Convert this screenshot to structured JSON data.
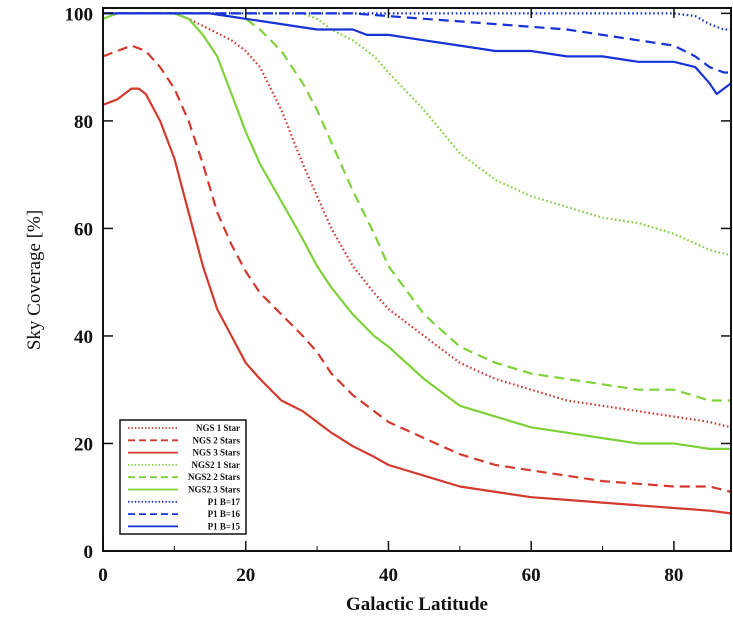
{
  "chart_data": {
    "type": "line",
    "title": "",
    "xlabel": "Galactic Latitude",
    "ylabel": "Sky Coverage [%]",
    "xlim": [
      0,
      88
    ],
    "ylim": [
      0,
      101
    ],
    "xticks": [
      "0",
      "20",
      "40",
      "60",
      "80"
    ],
    "yticks": [
      "0",
      "20",
      "40",
      "60",
      "80",
      "100"
    ],
    "grid": false,
    "legend_position": "bottom-left",
    "series": [
      {
        "name": "NGS 1 Star",
        "color": "#d23a2e",
        "dash": "dotted",
        "x": [
          0,
          5,
          10,
          12,
          15,
          18,
          20,
          22,
          25,
          28,
          30,
          32,
          35,
          38,
          40,
          45,
          50,
          55,
          60,
          65,
          70,
          75,
          80,
          85,
          88
        ],
        "y": [
          100,
          100,
          100,
          99,
          97,
          95,
          93,
          90,
          82,
          72,
          66,
          60,
          53,
          48,
          45,
          40,
          35,
          32,
          30,
          28,
          27,
          26,
          25,
          24,
          23
        ]
      },
      {
        "name": "NGS 2 Stars",
        "color": "#d23a2e",
        "dash": "dashed",
        "x": [
          0,
          2,
          4,
          6,
          8,
          10,
          12,
          14,
          16,
          18,
          20,
          22,
          25,
          28,
          30,
          32,
          35,
          38,
          40,
          45,
          50,
          55,
          60,
          65,
          70,
          75,
          80,
          85,
          88
        ],
        "y": [
          92,
          93,
          94,
          93,
          90,
          86,
          80,
          72,
          63,
          57,
          52,
          48,
          44,
          40,
          37,
          33,
          29,
          26,
          24,
          21,
          18,
          16,
          15,
          14,
          13,
          12.5,
          12,
          12,
          11
        ]
      },
      {
        "name": "NGS 3 Stars",
        "color": "#d23a2e",
        "dash": "solid",
        "x": [
          0,
          2,
          4,
          5,
          6,
          8,
          10,
          12,
          14,
          16,
          18,
          20,
          22,
          25,
          28,
          30,
          32,
          35,
          38,
          40,
          45,
          50,
          55,
          60,
          65,
          70,
          75,
          80,
          85,
          88
        ],
        "y": [
          83,
          84,
          86,
          86,
          85,
          80,
          73,
          63,
          53,
          45,
          40,
          35,
          32,
          28,
          26,
          24,
          22,
          19.5,
          17.5,
          16,
          14,
          12,
          11,
          10,
          9.5,
          9,
          8.5,
          8,
          7.5,
          7
        ]
      },
      {
        "name": "NGS2 1 Star",
        "color": "#7fd13b",
        "dash": "dotted",
        "x": [
          0,
          5,
          10,
          15,
          20,
          25,
          28,
          30,
          32,
          35,
          38,
          40,
          45,
          50,
          55,
          60,
          65,
          70,
          75,
          80,
          85,
          88
        ],
        "y": [
          100,
          100,
          100,
          100,
          100,
          100,
          100,
          99,
          97,
          95,
          92,
          89,
          82,
          74,
          69,
          66,
          64,
          62,
          61,
          59,
          56,
          55
        ]
      },
      {
        "name": "NGS2 2 Stars",
        "color": "#7fd13b",
        "dash": "dashed",
        "x": [
          0,
          5,
          10,
          15,
          20,
          22,
          25,
          28,
          30,
          32,
          35,
          38,
          40,
          45,
          50,
          55,
          60,
          65,
          70,
          75,
          80,
          85,
          88
        ],
        "y": [
          100,
          100,
          100,
          100,
          99,
          97,
          93,
          87,
          82,
          76,
          67,
          59,
          53,
          44,
          38,
          35,
          33,
          32,
          31,
          30,
          30,
          28,
          28
        ]
      },
      {
        "name": "NGS2 3 Stars",
        "color": "#7fd13b",
        "dash": "solid",
        "x": [
          0,
          2,
          5,
          8,
          10,
          12,
          14,
          16,
          18,
          20,
          22,
          25,
          28,
          30,
          32,
          35,
          38,
          40,
          45,
          50,
          55,
          60,
          65,
          70,
          75,
          80,
          85,
          88
        ],
        "y": [
          99,
          100,
          100,
          100,
          100,
          99,
          96,
          92,
          85,
          78,
          72,
          65,
          58,
          53,
          49,
          44,
          40,
          38,
          32,
          27,
          25,
          23,
          22,
          21,
          20,
          20,
          19,
          19
        ]
      },
      {
        "name": "P1 B=17",
        "color": "#1733d6",
        "dash": "dotted",
        "x": [
          0,
          10,
          20,
          30,
          40,
          50,
          60,
          70,
          75,
          80,
          83,
          85,
          87,
          88
        ],
        "y": [
          100,
          100,
          100,
          100,
          100,
          100,
          100,
          100,
          100,
          100,
          99.5,
          98,
          97,
          97
        ]
      },
      {
        "name": "P1 B=16",
        "color": "#1733d6",
        "dash": "dashed",
        "x": [
          0,
          10,
          20,
          30,
          35,
          40,
          45,
          50,
          55,
          60,
          65,
          70,
          75,
          80,
          83,
          85,
          87,
          88
        ],
        "y": [
          100,
          100,
          100,
          100,
          100,
          99.5,
          99,
          98.5,
          98,
          97.5,
          97,
          96,
          95,
          94,
          92,
          90,
          89,
          89
        ]
      },
      {
        "name": "P1 B=15",
        "color": "#1733d6",
        "dash": "solid",
        "x": [
          0,
          5,
          10,
          15,
          20,
          25,
          30,
          35,
          37,
          40,
          45,
          50,
          55,
          60,
          65,
          70,
          75,
          80,
          83,
          85,
          86,
          87,
          88
        ],
        "y": [
          100,
          100,
          100,
          100,
          99,
          98,
          97,
          97,
          96,
          96,
          95,
          94,
          93,
          93,
          92,
          92,
          91,
          91,
          90,
          87,
          85,
          86,
          87
        ]
      }
    ]
  }
}
